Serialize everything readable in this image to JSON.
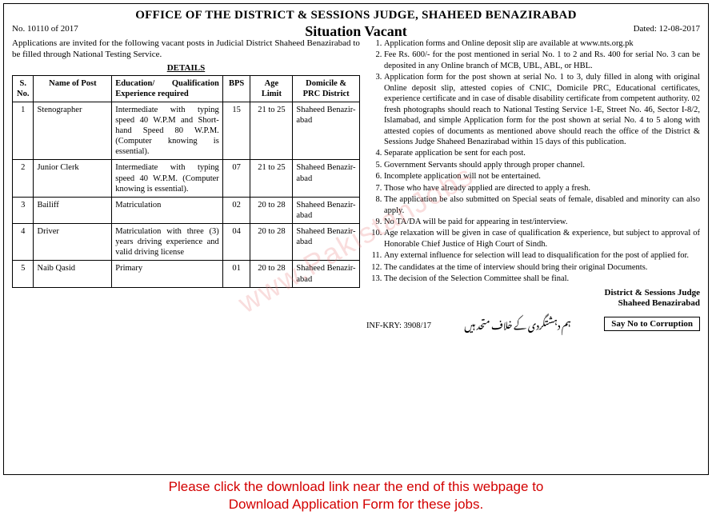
{
  "header": {
    "office": "OFFICE OF THE DISTRICT & SESSIONS JUDGE, SHAHEED BENAZIRABAD",
    "ref": "No. 10110 of 2017",
    "title": "Situation Vacant",
    "dated": "Dated: 12-08-2017"
  },
  "intro": "Applications are invited for the following vacant posts in Judicial District Shaheed Benazirabad to be filled through National Testing Service.",
  "details_label": "DETAILS",
  "table": {
    "columns": [
      "S. No.",
      "Name of Post",
      "Education/ Qualification Experience required",
      "BPS",
      "Age Limit",
      "Domicile & PRC District"
    ],
    "rows": [
      [
        "1",
        "Stenographer",
        "Intermediate with typing speed 40 W.P.M and Short-hand Speed 80 W.P.M. (Computer knowing is essential).",
        "15",
        "21 to 25",
        "Shaheed Benazir-abad"
      ],
      [
        "2",
        "Junior Clerk",
        "Intermediate with typing speed 40 W.P.M. (Computer knowing is essential).",
        "07",
        "21 to 25",
        "Shaheed Benazir-abad"
      ],
      [
        "3",
        "Bailiff",
        "Matriculation",
        "02",
        "20 to 28",
        "Shaheed Benazir-abad"
      ],
      [
        "4",
        "Driver",
        "Matriculation with three (3) years driving experience and valid driving license",
        "04",
        "20 to 28",
        "Shaheed Benazir-abad"
      ],
      [
        "5",
        "Naib Qasid",
        "Primary",
        "01",
        "20 to 28",
        "Shaheed Benazir-abad"
      ]
    ]
  },
  "instructions": [
    "Application forms and Online deposit slip are available at www.nts.org.pk",
    "Fee Rs. 600/- for the post mentioned in serial No. 1 to 2 and Rs. 400 for serial No. 3 can be deposited in any Online branch of MCB, UBL, ABL, or HBL.",
    "Application form for the post shown at serial No. 1 to 3, duly filled in along with original Online deposit slip, attested copies of CNIC, Domicile PRC, Educational certificates, experience certificate and in case of disable disability certificate from competent authority. 02 fresh photographs should reach to National Testing Service 1-E, Street No. 46, Sector I-8/2, Islamabad, and simple Application form for the post shown at serial No. 4 to 5 along with attested copies of documents as mentioned above should reach the office of the District & Sessions Judge Shaheed Benazirabad within 15 days of this publication.",
    "Separate application be sent for each post.",
    "Government Servants should apply through proper channel.",
    "Incomplete application will not be entertained.",
    "Those who have already applied are directed to apply a fresh.",
    "The application be also submitted on Special seats of female, disabled and minority can also apply.",
    "No TA/DA will be paid for appearing in test/interview.",
    "Age relaxation will be given in case of qualification & experience, but subject to approval of Honorable Chief Justice of High Court of Sindh.",
    "Any external influence for selection will lead to disqualification for the post of applied for.",
    "The candidates at the time of interview should bring their original Documents.",
    "The decision of the Selection Committee shall be final."
  ],
  "signature": {
    "line1": "District & Sessions Judge",
    "line2": "Shaheed Benazirabad"
  },
  "inf": "INF-KRY: 3908/17",
  "urdu": "ہم دہشتگردی کے خلاف متحد ہیں",
  "slogan": "Say No to Corruption",
  "watermark": "www.PakistanJobs",
  "footer": "Please click the download link near the end of this webpage to\nDownload Application Form for these jobs."
}
